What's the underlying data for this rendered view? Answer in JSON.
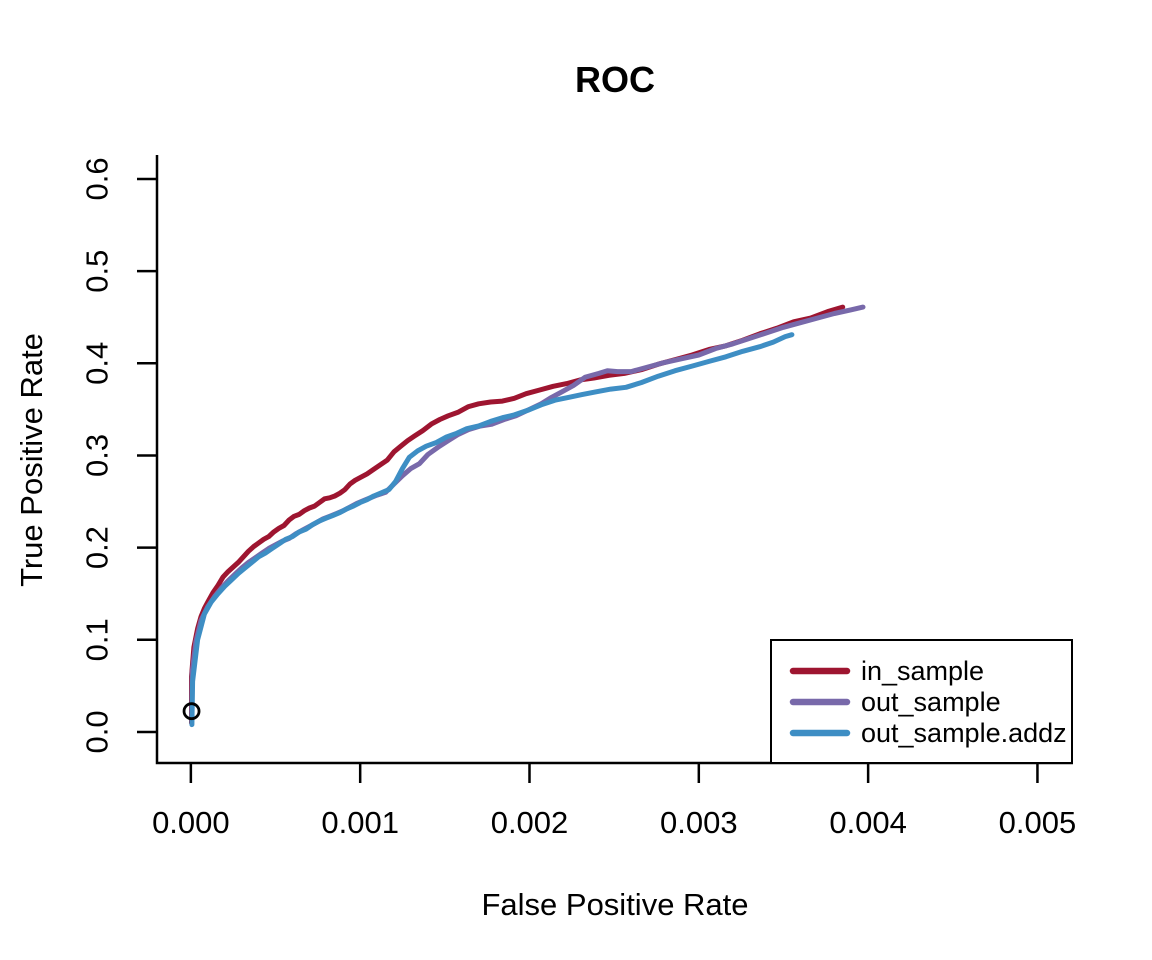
{
  "chart_data": {
    "type": "line",
    "title": "ROC",
    "xlabel": "False Positive Rate",
    "ylabel": "True Positive Rate",
    "xlim": [
      -0.0002,
      0.00521
    ],
    "ylim": [
      -0.0337,
      0.626
    ],
    "grid": false,
    "x_ticks": {
      "values": [
        0.0,
        0.001,
        0.002,
        0.003,
        0.004,
        0.005
      ],
      "labels": [
        "0.000",
        "0.001",
        "0.002",
        "0.003",
        "0.004",
        "0.005"
      ]
    },
    "y_ticks": {
      "values": [
        0.0,
        0.1,
        0.2,
        0.3,
        0.4,
        0.5,
        0.6
      ],
      "labels": [
        "0.0",
        "0.1",
        "0.2",
        "0.3",
        "0.4",
        "0.5",
        "0.6"
      ]
    },
    "axis_color": "#000000",
    "background_color": "#ffffff",
    "marker": {
      "shape": "open-circle",
      "x": 4e-06,
      "y": 0.0225,
      "color": "#000000"
    },
    "legend": {
      "position": "bottomright"
    },
    "series": [
      {
        "name": "in_sample",
        "color": "#9E1530",
        "points": [
          [
            4e-06,
            0.01
          ],
          [
            4e-06,
            0.06
          ],
          [
            1.8e-05,
            0.092
          ],
          [
            4e-05,
            0.112
          ],
          [
            6e-05,
            0.125
          ],
          [
            8e-05,
            0.134
          ],
          [
            0.0001,
            0.141
          ],
          [
            0.00013,
            0.151
          ],
          [
            0.00016,
            0.159
          ],
          [
            0.00019,
            0.168
          ],
          [
            0.00022,
            0.174
          ],
          [
            0.00025,
            0.179
          ],
          [
            0.00028,
            0.184
          ],
          [
            0.00031,
            0.19
          ],
          [
            0.00034,
            0.196
          ],
          [
            0.00037,
            0.201
          ],
          [
            0.0004,
            0.205
          ],
          [
            0.00043,
            0.209
          ],
          [
            0.00046,
            0.212
          ],
          [
            0.00049,
            0.217
          ],
          [
            0.00052,
            0.221
          ],
          [
            0.00055,
            0.224
          ],
          [
            0.00058,
            0.23
          ],
          [
            0.00061,
            0.234
          ],
          [
            0.00064,
            0.236
          ],
          [
            0.00067,
            0.24
          ],
          [
            0.0007,
            0.243
          ],
          [
            0.00073,
            0.245
          ],
          [
            0.00076,
            0.249
          ],
          [
            0.00079,
            0.253
          ],
          [
            0.00082,
            0.254
          ],
          [
            0.00085,
            0.256
          ],
          [
            0.00088,
            0.259
          ],
          [
            0.00091,
            0.263
          ],
          [
            0.00094,
            0.269
          ],
          [
            0.00097,
            0.273
          ],
          [
            0.001,
            0.276
          ],
          [
            0.00104,
            0.28
          ],
          [
            0.00108,
            0.285
          ],
          [
            0.00112,
            0.29
          ],
          [
            0.00116,
            0.295
          ],
          [
            0.0012,
            0.304
          ],
          [
            0.00124,
            0.31
          ],
          [
            0.00128,
            0.316
          ],
          [
            0.00132,
            0.321
          ],
          [
            0.00137,
            0.327
          ],
          [
            0.00142,
            0.334
          ],
          [
            0.00147,
            0.339
          ],
          [
            0.00152,
            0.343
          ],
          [
            0.00158,
            0.347
          ],
          [
            0.00164,
            0.353
          ],
          [
            0.0017,
            0.356
          ],
          [
            0.00177,
            0.358
          ],
          [
            0.00184,
            0.359
          ],
          [
            0.00191,
            0.362
          ],
          [
            0.00198,
            0.367
          ],
          [
            0.00206,
            0.371
          ],
          [
            0.00214,
            0.375
          ],
          [
            0.00222,
            0.378
          ],
          [
            0.0023,
            0.382
          ],
          [
            0.00238,
            0.384
          ],
          [
            0.00247,
            0.387
          ],
          [
            0.00256,
            0.389
          ],
          [
            0.00266,
            0.393
          ],
          [
            0.00276,
            0.399
          ],
          [
            0.00286,
            0.404
          ],
          [
            0.00296,
            0.409
          ],
          [
            0.00306,
            0.415
          ],
          [
            0.00316,
            0.419
          ],
          [
            0.00326,
            0.425
          ],
          [
            0.00336,
            0.432
          ],
          [
            0.00346,
            0.438
          ],
          [
            0.00356,
            0.445
          ],
          [
            0.00366,
            0.449
          ],
          [
            0.00376,
            0.456
          ],
          [
            0.00385,
            0.461
          ]
        ]
      },
      {
        "name": "out_sample",
        "color": "#7869AA",
        "points": [
          [
            6e-06,
            0.015
          ],
          [
            8e-06,
            0.065
          ],
          [
            3e-05,
            0.098
          ],
          [
            6e-05,
            0.121
          ],
          [
            0.0001,
            0.136
          ],
          [
            0.00014,
            0.147
          ],
          [
            0.00018,
            0.156
          ],
          [
            0.00022,
            0.164
          ],
          [
            0.00026,
            0.171
          ],
          [
            0.0003,
            0.178
          ],
          [
            0.00034,
            0.184
          ],
          [
            0.00038,
            0.189
          ],
          [
            0.00042,
            0.194
          ],
          [
            0.00046,
            0.199
          ],
          [
            0.0005,
            0.203
          ],
          [
            0.00054,
            0.207
          ],
          [
            0.00058,
            0.21
          ],
          [
            0.00062,
            0.215
          ],
          [
            0.00066,
            0.219
          ],
          [
            0.0007,
            0.223
          ],
          [
            0.00074,
            0.227
          ],
          [
            0.00078,
            0.231
          ],
          [
            0.00082,
            0.234
          ],
          [
            0.00086,
            0.237
          ],
          [
            0.0009,
            0.24
          ],
          [
            0.00094,
            0.244
          ],
          [
            0.00098,
            0.248
          ],
          [
            0.00102,
            0.251
          ],
          [
            0.00106,
            0.254
          ],
          [
            0.0011,
            0.257
          ],
          [
            0.00115,
            0.26
          ],
          [
            0.0012,
            0.269
          ],
          [
            0.00125,
            0.278
          ],
          [
            0.0013,
            0.286
          ],
          [
            0.00135,
            0.291
          ],
          [
            0.0014,
            0.301
          ],
          [
            0.00146,
            0.309
          ],
          [
            0.00152,
            0.316
          ],
          [
            0.00158,
            0.323
          ],
          [
            0.00164,
            0.328
          ],
          [
            0.00171,
            0.332
          ],
          [
            0.00178,
            0.334
          ],
          [
            0.00185,
            0.339
          ],
          [
            0.00192,
            0.343
          ],
          [
            0.002,
            0.35
          ],
          [
            0.00207,
            0.356
          ],
          [
            0.00213,
            0.363
          ],
          [
            0.00219,
            0.369
          ],
          [
            0.00226,
            0.376
          ],
          [
            0.00233,
            0.385
          ],
          [
            0.00241,
            0.389
          ],
          [
            0.00246,
            0.392
          ],
          [
            0.00252,
            0.391
          ],
          [
            0.0026,
            0.391
          ],
          [
            0.0027,
            0.396
          ],
          [
            0.0028,
            0.401
          ],
          [
            0.0029,
            0.405
          ],
          [
            0.003,
            0.409
          ],
          [
            0.0031,
            0.416
          ],
          [
            0.0032,
            0.421
          ],
          [
            0.0033,
            0.427
          ],
          [
            0.0034,
            0.433
          ],
          [
            0.0035,
            0.439
          ],
          [
            0.0036,
            0.444
          ],
          [
            0.0037,
            0.449
          ],
          [
            0.0038,
            0.454
          ],
          [
            0.0039,
            0.458
          ],
          [
            0.00397,
            0.461
          ]
        ]
      },
      {
        "name": "out_sample.addz",
        "color": "#3E8EC4",
        "points": [
          [
            6e-06,
            0.008
          ],
          [
            1e-05,
            0.055
          ],
          [
            4e-05,
            0.1
          ],
          [
            8e-05,
            0.128
          ],
          [
            0.00012,
            0.141
          ],
          [
            0.00016,
            0.15
          ],
          [
            0.0002,
            0.158
          ],
          [
            0.00024,
            0.165
          ],
          [
            0.00028,
            0.172
          ],
          [
            0.00032,
            0.178
          ],
          [
            0.00036,
            0.184
          ],
          [
            0.0004,
            0.19
          ],
          [
            0.00044,
            0.194
          ],
          [
            0.00048,
            0.199
          ],
          [
            0.00052,
            0.204
          ],
          [
            0.00056,
            0.209
          ],
          [
            0.0006,
            0.212
          ],
          [
            0.00064,
            0.217
          ],
          [
            0.00068,
            0.22
          ],
          [
            0.00072,
            0.225
          ],
          [
            0.00076,
            0.229
          ],
          [
            0.0008,
            0.232
          ],
          [
            0.00084,
            0.235
          ],
          [
            0.00088,
            0.238
          ],
          [
            0.00092,
            0.242
          ],
          [
            0.00096,
            0.245
          ],
          [
            0.001,
            0.249
          ],
          [
            0.00104,
            0.252
          ],
          [
            0.00108,
            0.256
          ],
          [
            0.00112,
            0.259
          ],
          [
            0.00117,
            0.263
          ],
          [
            0.00121,
            0.272
          ],
          [
            0.00125,
            0.286
          ],
          [
            0.00129,
            0.298
          ],
          [
            0.00134,
            0.305
          ],
          [
            0.00139,
            0.31
          ],
          [
            0.00145,
            0.314
          ],
          [
            0.00151,
            0.32
          ],
          [
            0.00157,
            0.324
          ],
          [
            0.00163,
            0.329
          ],
          [
            0.0017,
            0.332
          ],
          [
            0.00177,
            0.337
          ],
          [
            0.00184,
            0.341
          ],
          [
            0.00191,
            0.344
          ],
          [
            0.00199,
            0.349
          ],
          [
            0.00207,
            0.355
          ],
          [
            0.00215,
            0.36
          ],
          [
            0.00223,
            0.363
          ],
          [
            0.00231,
            0.366
          ],
          [
            0.00239,
            0.369
          ],
          [
            0.00248,
            0.372
          ],
          [
            0.00257,
            0.374
          ],
          [
            0.00266,
            0.379
          ],
          [
            0.00276,
            0.386
          ],
          [
            0.00286,
            0.392
          ],
          [
            0.00296,
            0.397
          ],
          [
            0.00306,
            0.402
          ],
          [
            0.00316,
            0.407
          ],
          [
            0.00326,
            0.413
          ],
          [
            0.00336,
            0.418
          ],
          [
            0.00344,
            0.423
          ],
          [
            0.00351,
            0.429
          ],
          [
            0.00355,
            0.431
          ]
        ]
      }
    ]
  }
}
